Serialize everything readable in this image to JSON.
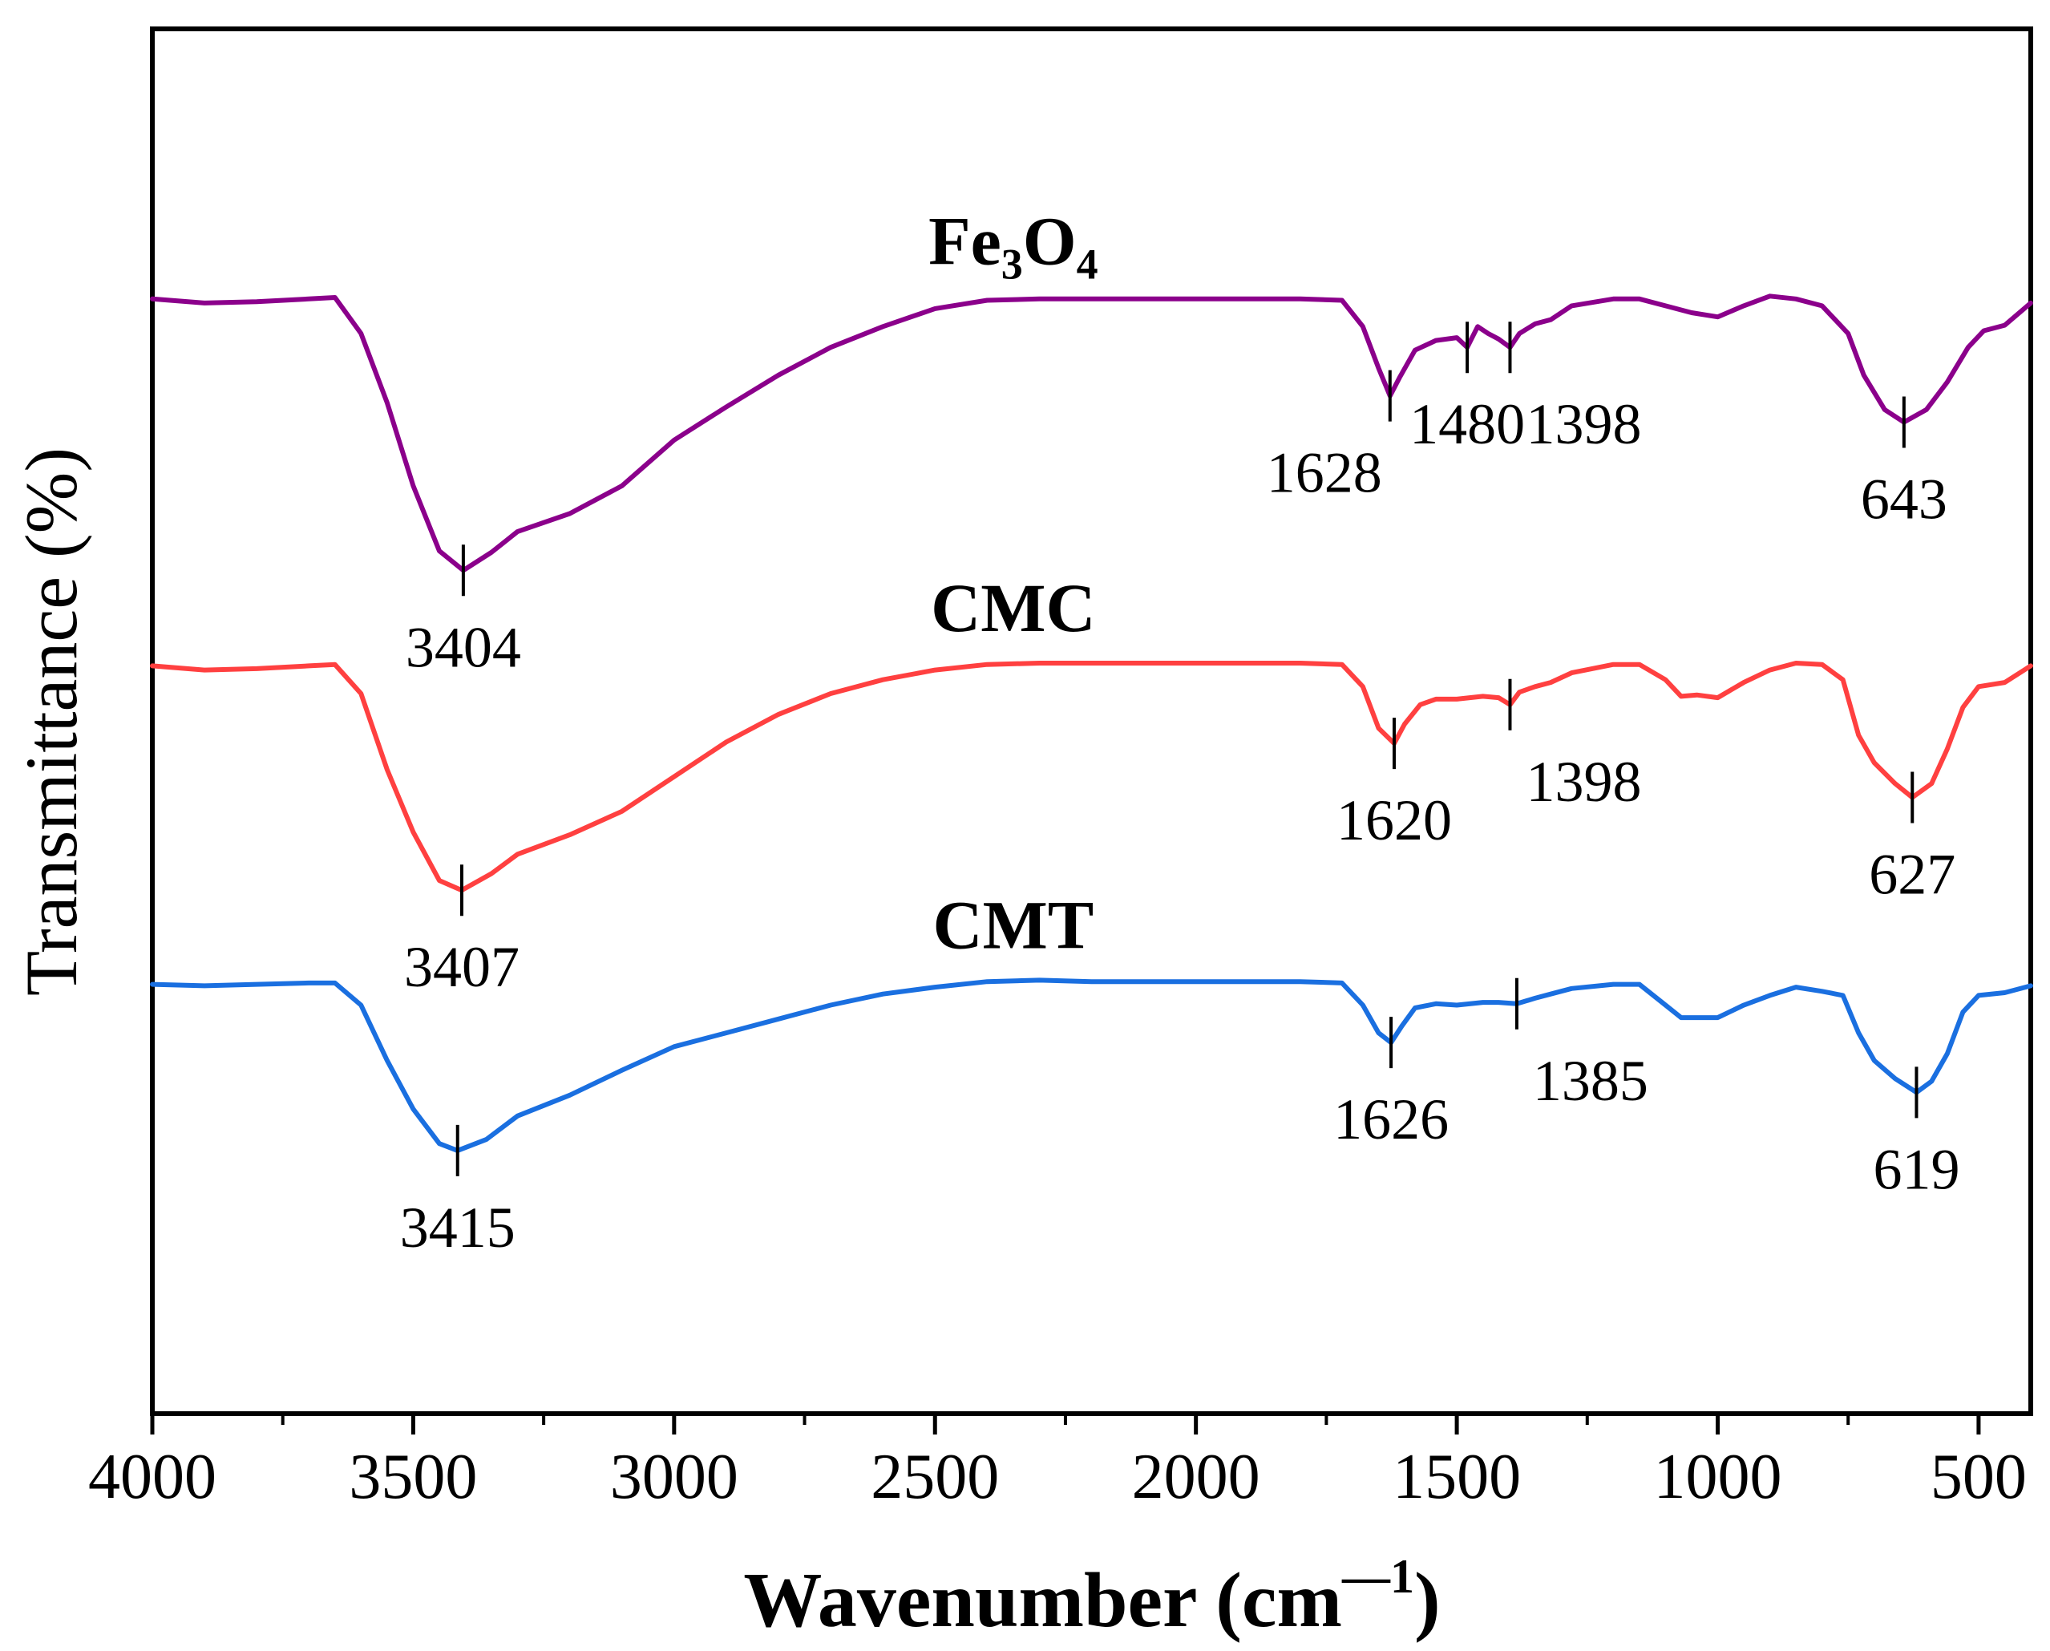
{
  "chart_data": {
    "type": "line",
    "xlabel": "Wavenumber (cm",
    "xlabel_sup": "—1",
    "xlabel_close": ")",
    "ylabel": "Transmittance (%)",
    "xlim": [
      4000,
      400
    ],
    "ylim": [
      0,
      100
    ],
    "x_ticks": [
      4000,
      3500,
      3000,
      2500,
      2000,
      1500,
      1000,
      500
    ],
    "x_tick_labels": [
      "4000",
      "3500",
      "3000",
      "2500",
      "2000",
      "1500",
      "1000",
      "500"
    ],
    "grid": false,
    "series": [
      {
        "name": "Fe3O4",
        "name_parts": [
          "Fe",
          "3",
          "O",
          "4"
        ],
        "color": "#8b008b",
        "points": [
          [
            4000,
            80.5
          ],
          [
            3900,
            80.2
          ],
          [
            3800,
            80.3
          ],
          [
            3700,
            80.5
          ],
          [
            3650,
            80.6
          ],
          [
            3600,
            78
          ],
          [
            3550,
            73
          ],
          [
            3500,
            67
          ],
          [
            3450,
            62.3
          ],
          [
            3404,
            60.9
          ],
          [
            3350,
            62.2
          ],
          [
            3300,
            63.7
          ],
          [
            3200,
            65
          ],
          [
            3100,
            67
          ],
          [
            3000,
            70.3
          ],
          [
            2900,
            72.7
          ],
          [
            2800,
            75
          ],
          [
            2700,
            77
          ],
          [
            2600,
            78.5
          ],
          [
            2500,
            79.8
          ],
          [
            2400,
            80.4
          ],
          [
            2300,
            80.5
          ],
          [
            2200,
            80.5
          ],
          [
            2000,
            80.5
          ],
          [
            1800,
            80.5
          ],
          [
            1720,
            80.4
          ],
          [
            1680,
            78.5
          ],
          [
            1650,
            75.5
          ],
          [
            1628,
            73.5
          ],
          [
            1610,
            74.8
          ],
          [
            1580,
            76.8
          ],
          [
            1540,
            77.5
          ],
          [
            1500,
            77.7
          ],
          [
            1480,
            77
          ],
          [
            1460,
            78.5
          ],
          [
            1440,
            78
          ],
          [
            1420,
            77.6
          ],
          [
            1398,
            77
          ],
          [
            1380,
            78
          ],
          [
            1350,
            78.7
          ],
          [
            1320,
            79
          ],
          [
            1280,
            80
          ],
          [
            1200,
            80.5
          ],
          [
            1150,
            80.5
          ],
          [
            1100,
            80
          ],
          [
            1050,
            79.5
          ],
          [
            1000,
            79.2
          ],
          [
            950,
            80
          ],
          [
            900,
            80.7
          ],
          [
            850,
            80.5
          ],
          [
            800,
            80
          ],
          [
            750,
            78
          ],
          [
            720,
            75
          ],
          [
            680,
            72.5
          ],
          [
            643,
            71.6
          ],
          [
            600,
            72.5
          ],
          [
            560,
            74.5
          ],
          [
            520,
            77
          ],
          [
            490,
            78.2
          ],
          [
            450,
            78.6
          ],
          [
            400,
            80.2
          ]
        ]
      },
      {
        "name": "CMC",
        "name_parts": [
          "CMC"
        ],
        "color": "#ff4040",
        "points": [
          [
            4000,
            54
          ],
          [
            3900,
            53.7
          ],
          [
            3800,
            53.8
          ],
          [
            3700,
            54
          ],
          [
            3650,
            54.1
          ],
          [
            3600,
            52
          ],
          [
            3550,
            46.5
          ],
          [
            3500,
            42
          ],
          [
            3450,
            38.5
          ],
          [
            3407,
            37.8
          ],
          [
            3350,
            39
          ],
          [
            3300,
            40.4
          ],
          [
            3200,
            41.8
          ],
          [
            3100,
            43.5
          ],
          [
            3000,
            46
          ],
          [
            2900,
            48.5
          ],
          [
            2800,
            50.5
          ],
          [
            2700,
            52
          ],
          [
            2600,
            53
          ],
          [
            2500,
            53.7
          ],
          [
            2400,
            54.1
          ],
          [
            2300,
            54.2
          ],
          [
            2200,
            54.2
          ],
          [
            2000,
            54.2
          ],
          [
            1800,
            54.2
          ],
          [
            1720,
            54.1
          ],
          [
            1680,
            52.5
          ],
          [
            1650,
            49.5
          ],
          [
            1620,
            48.4
          ],
          [
            1600,
            49.8
          ],
          [
            1570,
            51.2
          ],
          [
            1540,
            51.6
          ],
          [
            1500,
            51.6
          ],
          [
            1450,
            51.8
          ],
          [
            1420,
            51.7
          ],
          [
            1398,
            51.2
          ],
          [
            1380,
            52.1
          ],
          [
            1350,
            52.5
          ],
          [
            1320,
            52.8
          ],
          [
            1280,
            53.5
          ],
          [
            1200,
            54.1
          ],
          [
            1150,
            54.1
          ],
          [
            1100,
            53
          ],
          [
            1070,
            51.8
          ],
          [
            1040,
            51.9
          ],
          [
            1000,
            51.7
          ],
          [
            950,
            52.8
          ],
          [
            900,
            53.7
          ],
          [
            850,
            54.2
          ],
          [
            800,
            54.1
          ],
          [
            760,
            53
          ],
          [
            730,
            49
          ],
          [
            700,
            47
          ],
          [
            660,
            45.5
          ],
          [
            627,
            44.5
          ],
          [
            590,
            45.5
          ],
          [
            560,
            48
          ],
          [
            530,
            51
          ],
          [
            500,
            52.5
          ],
          [
            450,
            52.8
          ],
          [
            400,
            54
          ]
        ]
      },
      {
        "name": "CMT",
        "name_parts": [
          "CMT"
        ],
        "color": "#1a6fe0",
        "points": [
          [
            4000,
            31
          ],
          [
            3900,
            30.9
          ],
          [
            3800,
            31
          ],
          [
            3700,
            31.1
          ],
          [
            3650,
            31.1
          ],
          [
            3600,
            29.5
          ],
          [
            3550,
            25.5
          ],
          [
            3500,
            22
          ],
          [
            3450,
            19.5
          ],
          [
            3415,
            19
          ],
          [
            3360,
            19.8
          ],
          [
            3300,
            21.5
          ],
          [
            3200,
            23
          ],
          [
            3100,
            24.8
          ],
          [
            3000,
            26.5
          ],
          [
            2900,
            27.5
          ],
          [
            2800,
            28.5
          ],
          [
            2700,
            29.5
          ],
          [
            2600,
            30.3
          ],
          [
            2500,
            30.8
          ],
          [
            2400,
            31.2
          ],
          [
            2300,
            31.3
          ],
          [
            2200,
            31.2
          ],
          [
            2000,
            31.2
          ],
          [
            1800,
            31.2
          ],
          [
            1720,
            31.1
          ],
          [
            1680,
            29.5
          ],
          [
            1650,
            27.5
          ],
          [
            1626,
            26.8
          ],
          [
            1605,
            28
          ],
          [
            1580,
            29.3
          ],
          [
            1540,
            29.6
          ],
          [
            1500,
            29.5
          ],
          [
            1450,
            29.7
          ],
          [
            1420,
            29.7
          ],
          [
            1385,
            29.6
          ],
          [
            1350,
            30
          ],
          [
            1320,
            30.3
          ],
          [
            1280,
            30.7
          ],
          [
            1200,
            31
          ],
          [
            1150,
            31
          ],
          [
            1100,
            29.5
          ],
          [
            1070,
            28.6
          ],
          [
            1040,
            28.6
          ],
          [
            1000,
            28.6
          ],
          [
            950,
            29.5
          ],
          [
            900,
            30.2
          ],
          [
            850,
            30.8
          ],
          [
            800,
            30.5
          ],
          [
            760,
            30.2
          ],
          [
            730,
            27.5
          ],
          [
            700,
            25.5
          ],
          [
            660,
            24.2
          ],
          [
            619,
            23.2
          ],
          [
            590,
            24
          ],
          [
            560,
            26
          ],
          [
            530,
            29
          ],
          [
            500,
            30.2
          ],
          [
            450,
            30.4
          ],
          [
            400,
            30.9
          ]
        ]
      }
    ],
    "annotations": [
      {
        "series": "Fe3O4",
        "x": 3404,
        "y": 60.9,
        "label": "3404",
        "pos": "below"
      },
      {
        "series": "Fe3O4",
        "x": 1628,
        "y": 73.5,
        "label": "1628",
        "pos": "below-left"
      },
      {
        "series": "Fe3O4",
        "x": 1480,
        "y": 77,
        "label": "1480",
        "pos": "below"
      },
      {
        "series": "Fe3O4",
        "x": 1398,
        "y": 77,
        "label": "1398",
        "pos": "below-right"
      },
      {
        "series": "Fe3O4",
        "x": 643,
        "y": 71.6,
        "label": "643",
        "pos": "below"
      },
      {
        "series": "CMC",
        "x": 3407,
        "y": 37.8,
        "label": "3407",
        "pos": "below"
      },
      {
        "series": "CMC",
        "x": 1620,
        "y": 48.4,
        "label": "1620",
        "pos": "below"
      },
      {
        "series": "CMC",
        "x": 1398,
        "y": 51.2,
        "label": "1398",
        "pos": "below-right"
      },
      {
        "series": "CMC",
        "x": 627,
        "y": 44.5,
        "label": "627",
        "pos": "below"
      },
      {
        "series": "CMT",
        "x": 3415,
        "y": 19,
        "label": "3415",
        "pos": "below"
      },
      {
        "series": "CMT",
        "x": 1626,
        "y": 26.8,
        "label": "1626",
        "pos": "below"
      },
      {
        "series": "CMT",
        "x": 1385,
        "y": 29.6,
        "label": "1385",
        "pos": "below-right"
      },
      {
        "series": "CMT",
        "x": 619,
        "y": 23.2,
        "label": "619",
        "pos": "below"
      }
    ]
  }
}
